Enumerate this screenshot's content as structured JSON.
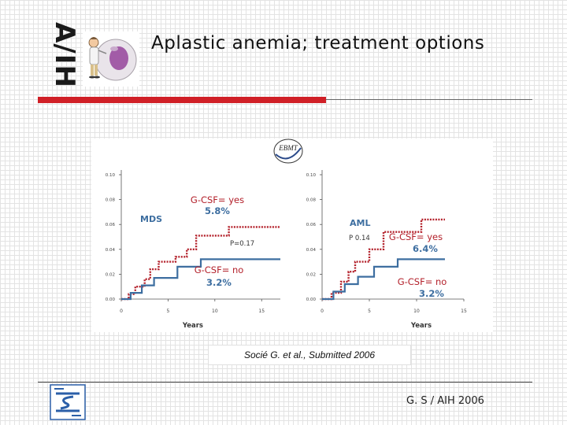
{
  "header": {
    "logo_text": "A/IH",
    "title": "Aplastic anemia; treatment options"
  },
  "chart_data": [
    {
      "type": "line",
      "panel": "MDS",
      "xlabel": "Years",
      "x_ticks": [
        "0",
        "5",
        "10",
        "15"
      ],
      "y_ticks": [
        "0.00",
        "0.02",
        "0.04",
        "0.06",
        "0.08",
        "0.10"
      ],
      "xlim": [
        0,
        17
      ],
      "ylim": [
        0,
        0.1
      ],
      "p_value": "P=0.17",
      "series": [
        {
          "name": "G-CSF= yes",
          "rate": "5.8%",
          "color": "#b3202a",
          "dashed": true,
          "x": [
            0,
            0.8,
            0.8,
            1.5,
            1.5,
            2.5,
            2.5,
            3.1,
            3.1,
            4.0,
            4.0,
            5.8,
            5.8,
            7.0,
            7.0,
            8.0,
            8.0,
            11.5,
            11.5,
            17
          ],
          "y": [
            0,
            0,
            0.004,
            0.004,
            0.01,
            0.01,
            0.016,
            0.016,
            0.024,
            0.024,
            0.03,
            0.03,
            0.034,
            0.034,
            0.04,
            0.04,
            0.051,
            0.051,
            0.058,
            0.058
          ]
        },
        {
          "name": "G-CSF= no",
          "rate": "3.2%",
          "color": "#3d6ea0",
          "dashed": false,
          "x": [
            0,
            1.0,
            1.0,
            2.2,
            2.2,
            3.5,
            3.5,
            6.0,
            6.0,
            8.5,
            8.5,
            17
          ],
          "y": [
            0,
            0,
            0.005,
            0.005,
            0.011,
            0.011,
            0.017,
            0.017,
            0.026,
            0.026,
            0.032,
            0.032
          ]
        }
      ]
    },
    {
      "type": "line",
      "panel": "AML",
      "xlabel": "Years",
      "x_ticks": [
        "0",
        "5",
        "10",
        "15"
      ],
      "y_ticks": [
        "0.00",
        "0.02",
        "0.04",
        "0.06",
        "0.08",
        "0.10"
      ],
      "xlim": [
        0,
        15
      ],
      "ylim": [
        0,
        0.1
      ],
      "p_value": "P  0.14",
      "series": [
        {
          "name": "G-CSF= yes",
          "rate": "6.4%",
          "color": "#b3202a",
          "dashed": true,
          "x": [
            0,
            1.0,
            1.0,
            2.0,
            2.0,
            2.8,
            2.8,
            3.5,
            3.5,
            5.0,
            5.0,
            6.5,
            6.5,
            10.5,
            10.5,
            13
          ],
          "y": [
            0,
            0,
            0.005,
            0.005,
            0.014,
            0.014,
            0.022,
            0.022,
            0.03,
            0.03,
            0.04,
            0.04,
            0.054,
            0.054,
            0.064,
            0.064
          ]
        },
        {
          "name": "G-CSF= no",
          "rate": "3.2%",
          "color": "#3d6ea0",
          "dashed": false,
          "x": [
            0,
            1.2,
            1.2,
            2.4,
            2.4,
            3.8,
            3.8,
            5.5,
            5.5,
            8.0,
            8.0,
            13
          ],
          "y": [
            0,
            0,
            0.006,
            0.006,
            0.012,
            0.012,
            0.018,
            0.018,
            0.026,
            0.026,
            0.032,
            0.032
          ]
        }
      ]
    }
  ],
  "chart_logo_text": "EBMT",
  "caption": "Socié G. et al.,  Submitted 2006",
  "footer": {
    "credit": "G. S / AIH 2006"
  }
}
